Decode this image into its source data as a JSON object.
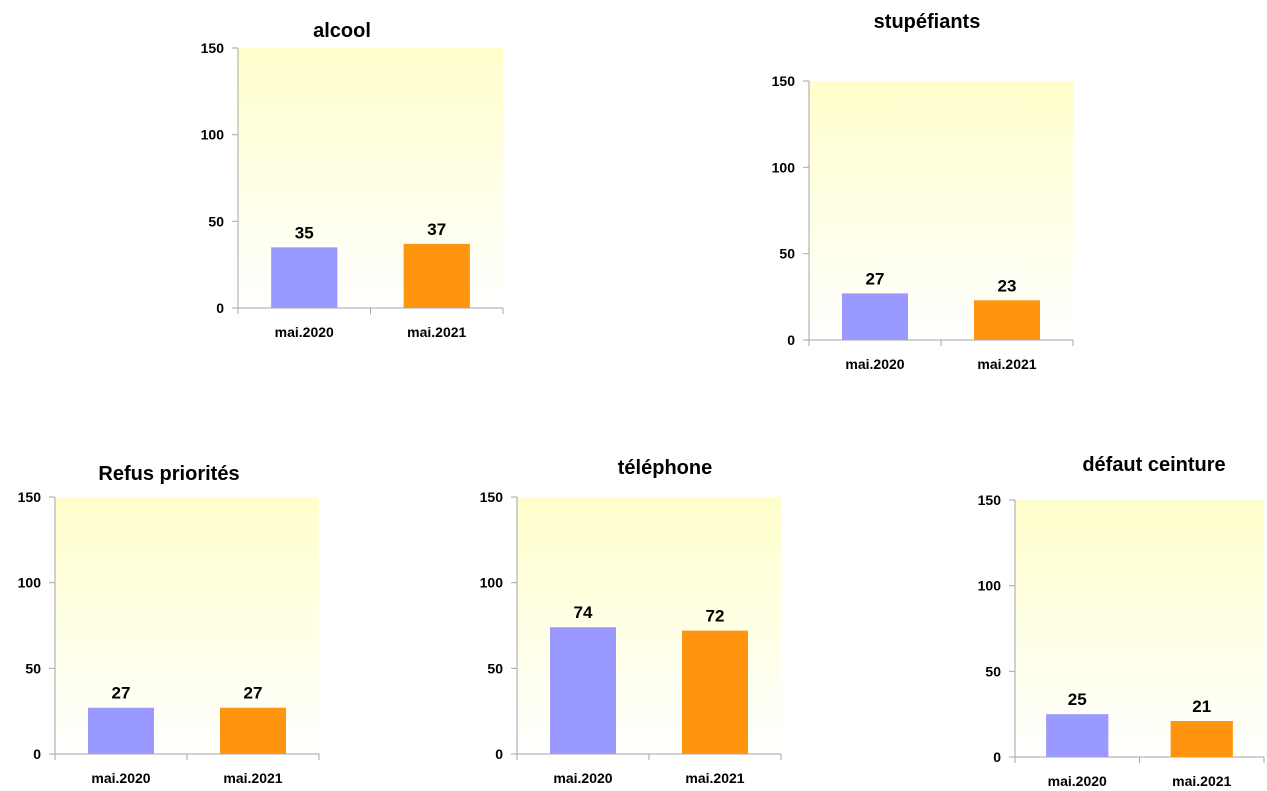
{
  "colors": {
    "series_2020": "#9999ff",
    "series_2021": "#ff950e",
    "plot_top": "#ffffcc",
    "plot_bottom": "#ffffff"
  },
  "chart_data": [
    {
      "type": "bar",
      "title": "alcool",
      "categories": [
        "mai.2020",
        "mai.2021"
      ],
      "values": [
        35,
        37
      ],
      "data_labels": [
        "35",
        "37"
      ],
      "ylim": [
        0,
        150
      ],
      "yticks": [
        "0",
        "50",
        "100",
        "150"
      ],
      "grid": false
    },
    {
      "type": "bar",
      "title": "stupéfiants",
      "categories": [
        "mai.2020",
        "mai.2021"
      ],
      "values": [
        27,
        23
      ],
      "data_labels": [
        "27",
        "23"
      ],
      "ylim": [
        0,
        150
      ],
      "yticks": [
        "0",
        "50",
        "100",
        "150"
      ],
      "grid": false
    },
    {
      "type": "bar",
      "title": "Refus priorités",
      "categories": [
        "mai.2020",
        "mai.2021"
      ],
      "values": [
        27,
        27
      ],
      "data_labels": [
        "27",
        "27"
      ],
      "ylim": [
        0,
        150
      ],
      "yticks": [
        "0",
        "50",
        "100",
        "150"
      ],
      "grid": false
    },
    {
      "type": "bar",
      "title": "téléphone",
      "categories": [
        "mai.2020",
        "mai.2021"
      ],
      "values": [
        74,
        72
      ],
      "data_labels": [
        "74",
        "72"
      ],
      "ylim": [
        0,
        150
      ],
      "yticks": [
        "0",
        "50",
        "100",
        "150"
      ],
      "grid": false
    },
    {
      "type": "bar",
      "title": "défaut ceinture",
      "categories": [
        "mai.2020",
        "mai.2021"
      ],
      "values": [
        25,
        21
      ],
      "data_labels": [
        "25",
        "21"
      ],
      "ylim": [
        0,
        150
      ],
      "yticks": [
        "0",
        "50",
        "100",
        "150"
      ],
      "grid": false
    }
  ]
}
